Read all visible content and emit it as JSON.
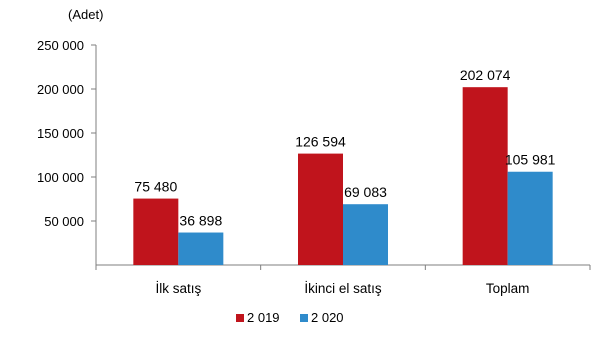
{
  "chart_data": {
    "type": "bar",
    "unit_label": "(Adet)",
    "title": "",
    "xlabel": "",
    "ylabel": "",
    "categories": [
      "İlk satış",
      "İkinci el satış",
      "Toplam"
    ],
    "series": [
      {
        "name": "2 019",
        "color": "#C0141C",
        "values": [
          75480,
          126594,
          202074
        ],
        "labels": [
          "75 480",
          "126 594",
          "202 074"
        ]
      },
      {
        "name": "2 020",
        "color": "#2F8BCB",
        "values": [
          36898,
          69083,
          105981
        ],
        "labels": [
          "36 898",
          "69 083",
          "105 981"
        ]
      }
    ],
    "ylim": [
      0,
      250000
    ],
    "yticks": [
      50000,
      100000,
      150000,
      200000,
      250000
    ],
    "ytick_labels": [
      "50 000",
      "100 000",
      "150 000",
      "200 000",
      "250 000"
    ],
    "grid": false,
    "legend_position": "bottom"
  }
}
